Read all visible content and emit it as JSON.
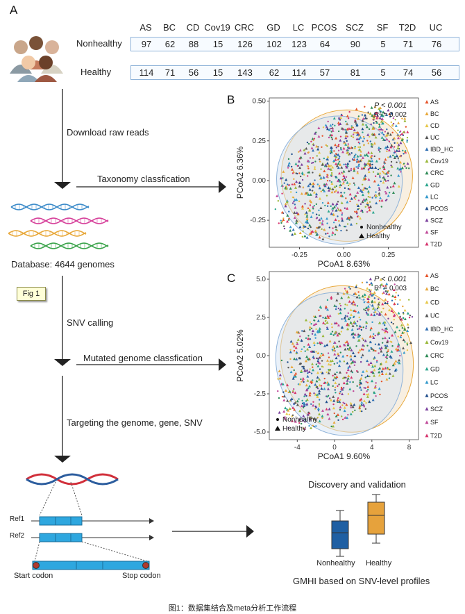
{
  "panel_a": {
    "letter": "A",
    "table": {
      "columns": [
        "AS",
        "BC",
        "CD",
        "Cov19",
        "CRC",
        "GD",
        "LC",
        "PCOS",
        "SCZ",
        "SF",
        "T2D",
        "UC"
      ],
      "rows": [
        {
          "label": "Nonhealthy",
          "values": [
            "97",
            "62",
            "88",
            "15",
            "126",
            "102",
            "123",
            "64",
            "90",
            "5",
            "71",
            "76"
          ]
        },
        {
          "label": "Healthy",
          "values": [
            "114",
            "71",
            "56",
            "15",
            "143",
            "62",
            "114",
            "57",
            "81",
            "5",
            "74",
            "56"
          ]
        }
      ]
    },
    "steps": {
      "download": "Download raw reads",
      "taxonomy": "Taxonomy classfication",
      "database": "Database: 4644 genomes",
      "fig_badge": "Fig 1",
      "snv_calling": "SNV calling",
      "mutated": "Mutated genome classfication",
      "targeting": "Targeting the genome,  gene, SNV",
      "ref1": "Ref1",
      "ref2": "Ref2",
      "start_codon": "Start codon",
      "stop_codon": "Stop codon"
    }
  },
  "panel_b": {
    "letter": "B",
    "stat_p": "P < 0.001",
    "stat_r": "R² = 0.002",
    "xlabel": "PCoA1 8.63%",
    "ylabel": "PCoA2 6.36%",
    "xticks": [
      "-0.25",
      "0.00",
      "0.25"
    ],
    "yticks": [
      "0.50",
      "0.25",
      "0.00",
      "-0.25"
    ],
    "legend_group": [
      "Nonhealthy",
      "Healthy"
    ]
  },
  "panel_c": {
    "letter": "C",
    "stat_p": "P < 0.001",
    "stat_r": "R² = 0.003",
    "xlabel": "PCoA1 9.60%",
    "ylabel": "PCoA2 5.02%",
    "xticks": [
      "-4",
      "0",
      "4",
      "8"
    ],
    "yticks": [
      "5.0",
      "2.5",
      "0.0",
      "-2.5",
      "-5.0"
    ],
    "legend_group": [
      "Nonhealthy",
      "Healthy"
    ]
  },
  "legend_diseases": [
    {
      "label": "AS",
      "color": "#e6542a"
    },
    {
      "label": "BC",
      "color": "#e8a83a"
    },
    {
      "label": "CD",
      "color": "#e6c84a"
    },
    {
      "label": "UC",
      "color": "#555555"
    },
    {
      "label": "IBD_HC",
      "color": "#2f6fb3"
    },
    {
      "label": "Cov19",
      "color": "#9ab83a"
    },
    {
      "label": "CRC",
      "color": "#2e8b57"
    },
    {
      "label": "GD",
      "color": "#2aa58c"
    },
    {
      "label": "LC",
      "color": "#3399cc"
    },
    {
      "label": "PCOS",
      "color": "#1f4e8c"
    },
    {
      "label": "SCZ",
      "color": "#7a3f9d"
    },
    {
      "label": "SF",
      "color": "#c04a9a"
    },
    {
      "label": "T2D",
      "color": "#d6336c"
    }
  ],
  "panel_d": {
    "title": "Discovery and validation",
    "categories": [
      "Nonhealthy",
      "Healthy"
    ],
    "colors": [
      "#1f5fa3",
      "#e6a23c"
    ],
    "subtitle": "GMHI based on SNV-level profiles"
  },
  "caption": "图1：数据集结合及meta分析工作流程",
  "chart_data": [
    {
      "type": "scatter",
      "title": "B",
      "xlabel": "PCoA1 8.63%",
      "ylabel": "PCoA2 6.36%",
      "xlim": [
        -0.42,
        0.42
      ],
      "ylim": [
        -0.42,
        0.52
      ],
      "annotations": [
        "P < 0.001",
        "R² = 0.002"
      ],
      "series": [
        {
          "name": "Nonhealthy",
          "shape": "circle"
        },
        {
          "name": "Healthy",
          "shape": "triangle"
        }
      ]
    },
    {
      "type": "scatter",
      "title": "C",
      "xlabel": "PCoA1 9.60%",
      "ylabel": "PCoA2 5.02%",
      "xlim": [
        -7,
        9
      ],
      "ylim": [
        -5.5,
        5.5
      ],
      "annotations": [
        "P < 0.001",
        "R² = 0.003"
      ],
      "series": [
        {
          "name": "Nonhealthy",
          "shape": "circle"
        },
        {
          "name": "Healthy",
          "shape": "triangle"
        }
      ]
    }
  ]
}
